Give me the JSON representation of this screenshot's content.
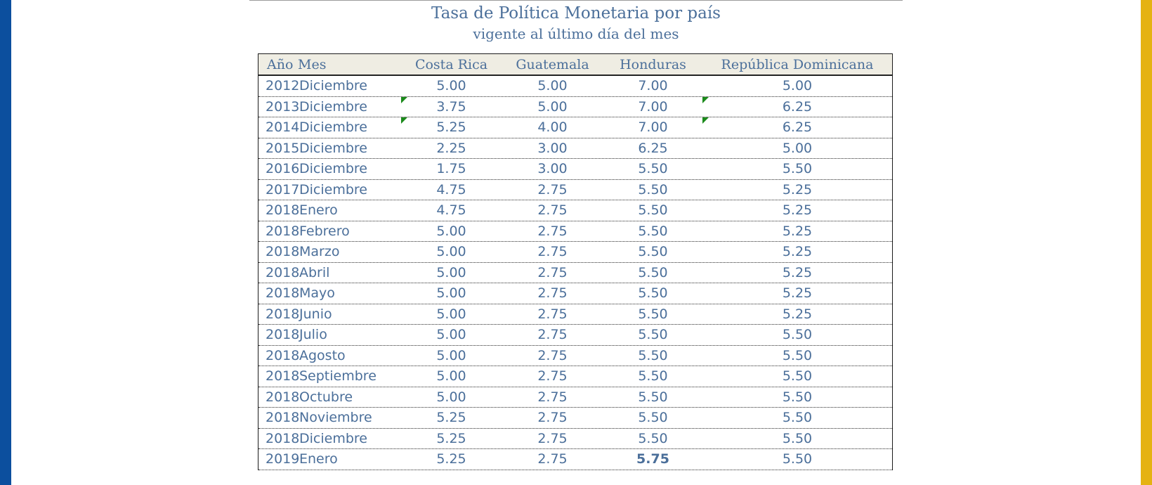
{
  "title": "Tasa de Política Monetaria por país",
  "subtitle": "vigente al último día del mes",
  "colors": {
    "left_bar": "#0c4f9e",
    "right_bar": "#e5b212",
    "text": "#4b6f9a",
    "header_bg": "#efede3",
    "marker": "#1b8a1b"
  },
  "table": {
    "headers": [
      "Año",
      "Mes",
      "Costa Rica",
      "Guatemala",
      "Honduras",
      "República Dominicana"
    ],
    "rows": [
      {
        "year": "2012",
        "month": "Diciembre",
        "cr": "5.00",
        "gt": "5.00",
        "hn": "7.00",
        "rd": "5.00"
      },
      {
        "year": "2013",
        "month": "Diciembre",
        "cr": "3.75",
        "gt": "5.00",
        "hn": "7.00",
        "rd": "6.25"
      },
      {
        "year": "2014",
        "month": "Diciembre",
        "cr": "5.25",
        "gt": "4.00",
        "hn": "7.00",
        "rd": "6.25"
      },
      {
        "year": "2015",
        "month": "Diciembre",
        "cr": "2.25",
        "gt": "3.00",
        "hn": "6.25",
        "rd": "5.00"
      },
      {
        "year": "2016",
        "month": "Diciembre",
        "cr": "1.75",
        "gt": "3.00",
        "hn": "5.50",
        "rd": "5.50"
      },
      {
        "year": "2017",
        "month": "Diciembre",
        "cr": "4.75",
        "gt": "2.75",
        "hn": "5.50",
        "rd": "5.25"
      },
      {
        "year": "2018",
        "month": "Enero",
        "cr": "4.75",
        "gt": "2.75",
        "hn": "5.50",
        "rd": "5.25"
      },
      {
        "year": "2018",
        "month": "Febrero",
        "cr": "5.00",
        "gt": "2.75",
        "hn": "5.50",
        "rd": "5.25"
      },
      {
        "year": "2018",
        "month": "Marzo",
        "cr": "5.00",
        "gt": "2.75",
        "hn": "5.50",
        "rd": "5.25"
      },
      {
        "year": "2018",
        "month": "Abril",
        "cr": "5.00",
        "gt": "2.75",
        "hn": "5.50",
        "rd": "5.25"
      },
      {
        "year": "2018",
        "month": "Mayo",
        "cr": "5.00",
        "gt": "2.75",
        "hn": "5.50",
        "rd": "5.25"
      },
      {
        "year": "2018",
        "month": "Junio",
        "cr": "5.00",
        "gt": "2.75",
        "hn": "5.50",
        "rd": "5.25"
      },
      {
        "year": "2018",
        "month": "Julio",
        "cr": "5.00",
        "gt": "2.75",
        "hn": "5.50",
        "rd": "5.50"
      },
      {
        "year": "2018",
        "month": "Agosto",
        "cr": "5.00",
        "gt": "2.75",
        "hn": "5.50",
        "rd": "5.50"
      },
      {
        "year": "2018",
        "month": "Septiembre",
        "cr": "5.00",
        "gt": "2.75",
        "hn": "5.50",
        "rd": "5.50"
      },
      {
        "year": "2018",
        "month": "Octubre",
        "cr": "5.00",
        "gt": "2.75",
        "hn": "5.50",
        "rd": "5.50"
      },
      {
        "year": "2018",
        "month": "Noviembre",
        "cr": "5.25",
        "gt": "2.75",
        "hn": "5.50",
        "rd": "5.50"
      },
      {
        "year": "2018",
        "month": "Diciembre",
        "cr": "5.25",
        "gt": "2.75",
        "hn": "5.50",
        "rd": "5.50"
      },
      {
        "year": "2019",
        "month": "Enero",
        "cr": "5.25",
        "gt": "2.75",
        "hn": "5.75",
        "rd": "5.50",
        "hn_bold": true
      }
    ]
  }
}
